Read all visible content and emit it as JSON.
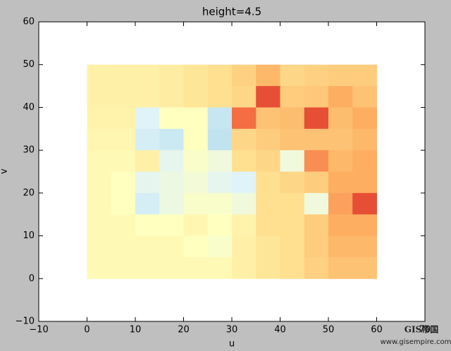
{
  "chart_data": {
    "type": "heatmap",
    "title": "height=4.5",
    "xlabel": "u",
    "ylabel": "v",
    "xlim": [
      -10,
      70
    ],
    "ylim": [
      -10,
      60
    ],
    "xticks": [
      {
        "value": -10,
        "label": "−10"
      },
      0,
      10,
      20,
      30,
      40,
      50,
      60,
      70
    ],
    "yticks": [
      {
        "value": -10,
        "label": "−10"
      },
      0,
      10,
      20,
      30,
      40,
      50,
      60
    ],
    "extent": [
      0,
      60,
      0,
      50
    ],
    "zlim": [
      0,
      1
    ],
    "colormap": [
      "#313695",
      "#4575b4",
      "#74add1",
      "#abd9e9",
      "#e0f3f8",
      "#ffffbf",
      "#fee090",
      "#fdae61",
      "#f46d43",
      "#d73027",
      "#a50026"
    ],
    "z": [
      [
        0.55,
        0.55,
        0.55,
        0.56,
        0.58,
        0.6,
        0.63,
        0.68,
        0.62,
        0.63,
        0.64,
        0.64
      ],
      [
        0.55,
        0.55,
        0.55,
        0.56,
        0.58,
        0.6,
        0.62,
        0.85,
        0.64,
        0.65,
        0.7,
        0.66
      ],
      [
        0.54,
        0.54,
        0.4,
        0.5,
        0.5,
        0.35,
        0.8,
        0.66,
        0.67,
        0.85,
        0.67,
        0.7
      ],
      [
        0.53,
        0.53,
        0.38,
        0.36,
        0.5,
        0.34,
        0.62,
        0.64,
        0.66,
        0.66,
        0.66,
        0.68
      ],
      [
        0.52,
        0.52,
        0.55,
        0.42,
        0.48,
        0.45,
        0.6,
        0.62,
        0.45,
        0.75,
        0.68,
        0.7
      ],
      [
        0.52,
        0.5,
        0.42,
        0.44,
        0.46,
        0.42,
        0.4,
        0.6,
        0.62,
        0.64,
        0.7,
        0.7
      ],
      [
        0.52,
        0.5,
        0.38,
        0.44,
        0.48,
        0.48,
        0.45,
        0.6,
        0.6,
        0.45,
        0.72,
        0.85
      ],
      [
        0.52,
        0.52,
        0.5,
        0.5,
        0.53,
        0.5,
        0.54,
        0.6,
        0.6,
        0.64,
        0.7,
        0.7
      ],
      [
        0.52,
        0.52,
        0.52,
        0.52,
        0.5,
        0.48,
        0.55,
        0.58,
        0.6,
        0.64,
        0.68,
        0.68
      ],
      [
        0.52,
        0.52,
        0.52,
        0.52,
        0.52,
        0.52,
        0.55,
        0.58,
        0.6,
        0.63,
        0.66,
        0.66
      ]
    ]
  },
  "watermark": {
    "brand": "GIS帝国",
    "url": "www.gisempire.com"
  }
}
